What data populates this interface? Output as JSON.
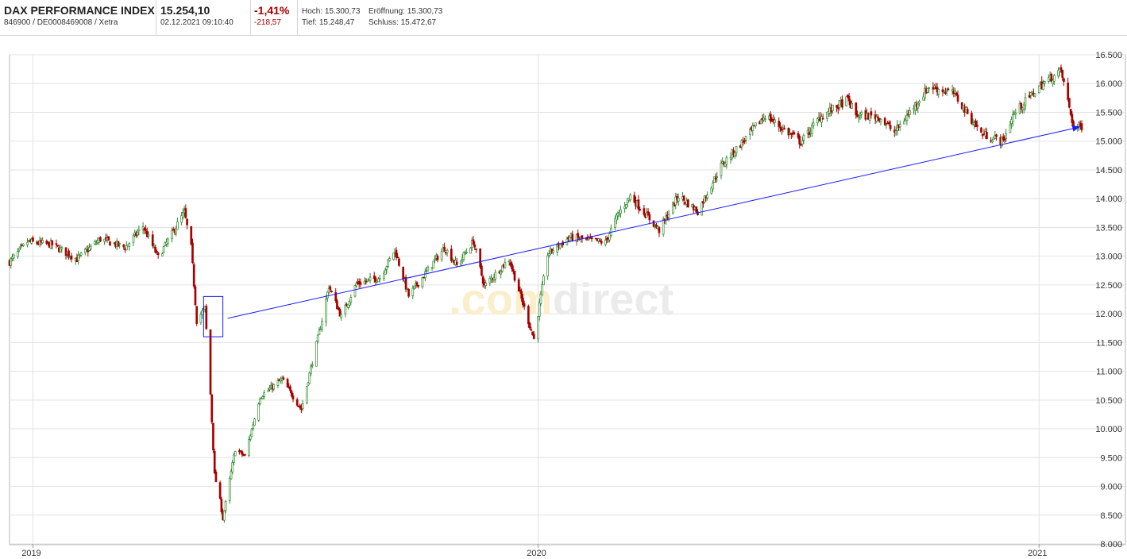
{
  "header": {
    "name": "DAX PERFORMANCE INDEX",
    "ids": "846900 / DE0008469008 / Xetra",
    "price": "15.254,10",
    "datetime": "02.12.2021 09:10:40",
    "change_pct": "-1,41%",
    "change_abs": "-218,57",
    "high_label": "Hoch:",
    "high": "15.300,73",
    "open_label": "Eröffnung:",
    "open": "15.300,73",
    "low_label": "Tief:",
    "low": "15.248,47",
    "close_label": "Schluss:",
    "close": "15.472,67"
  },
  "watermark": {
    "prefix": ".com",
    "suffix": "direct"
  },
  "colors": {
    "up": "#2e8b2e",
    "down": "#a80000",
    "trendline": "#1a1aff",
    "grid": "#e2e2e2"
  },
  "chart_data": {
    "type": "candlestick",
    "grid": true,
    "ylim": [
      8000,
      16500
    ],
    "y_ticks": [
      "16.500",
      "16.000",
      "15.500",
      "15.000",
      "14.500",
      "14.000",
      "13.500",
      "13.000",
      "12.500",
      "12.000",
      "11.500",
      "11.000",
      "10.500",
      "10.000",
      "9.500",
      "9.000",
      "8.500",
      "8.000"
    ],
    "y_tick_values": [
      16500,
      16000,
      15500,
      15000,
      14500,
      14000,
      13500,
      13000,
      12500,
      12000,
      11500,
      11000,
      10500,
      10000,
      9500,
      9000,
      8500,
      8000
    ],
    "x_ticks": [
      "2019",
      "2020",
      "2021"
    ],
    "x_tick_values": [
      "2019-11-01",
      "2020-11-02",
      "2021-11-01"
    ],
    "x_range": [
      "2019-10-15",
      "2021-12-02"
    ],
    "anchors": [
      [
        "2019-10-15",
        12900
      ],
      [
        "2019-10-28",
        13250
      ],
      [
        "2019-11-15",
        13200
      ],
      [
        "2019-12-03",
        12950
      ],
      [
        "2019-12-20",
        13300
      ],
      [
        "2020-01-07",
        13150
      ],
      [
        "2020-01-20",
        13520
      ],
      [
        "2020-01-31",
        12980
      ],
      [
        "2020-02-19",
        13760
      ],
      [
        "2020-02-24",
        13150
      ],
      [
        "2020-02-28",
        11880
      ],
      [
        "2020-03-05",
        12100
      ],
      [
        "2020-03-09",
        10600
      ],
      [
        "2020-03-12",
        9200
      ],
      [
        "2020-03-16",
        8750
      ],
      [
        "2020-03-18",
        8440
      ],
      [
        "2020-03-27",
        9650
      ],
      [
        "2020-04-03",
        9520
      ],
      [
        "2020-04-14",
        10560
      ],
      [
        "2020-04-30",
        10860
      ],
      [
        "2020-05-14",
        10340
      ],
      [
        "2020-05-28",
        11780
      ],
      [
        "2020-06-03",
        12480
      ],
      [
        "2020-06-12",
        11950
      ],
      [
        "2020-06-23",
        12520
      ],
      [
        "2020-07-10",
        12630
      ],
      [
        "2020-07-21",
        13110
      ],
      [
        "2020-07-31",
        12310
      ],
      [
        "2020-08-26",
        13150
      ],
      [
        "2020-09-04",
        12840
      ],
      [
        "2020-09-16",
        13260
      ],
      [
        "2020-09-24",
        12480
      ],
      [
        "2020-10-12",
        12950
      ],
      [
        "2020-10-30",
        11560
      ],
      [
        "2020-11-09",
        13040
      ],
      [
        "2020-11-25",
        13330
      ],
      [
        "2020-12-07",
        13280
      ],
      [
        "2020-12-21",
        13240
      ],
      [
        "2020-12-30",
        13720
      ],
      [
        "2021-01-08",
        14050
      ],
      [
        "2021-01-29",
        13450
      ],
      [
        "2021-02-12",
        14050
      ],
      [
        "2021-02-26",
        13780
      ],
      [
        "2021-03-15",
        14570
      ],
      [
        "2021-03-31",
        15000
      ],
      [
        "2021-04-16",
        15450
      ],
      [
        "2021-05-12",
        14980
      ],
      [
        "2021-05-26",
        15420
      ],
      [
        "2021-06-15",
        15720
      ],
      [
        "2021-06-21",
        15450
      ],
      [
        "2021-07-08",
        15420
      ],
      [
        "2021-07-19",
        15150
      ],
      [
        "2021-08-13",
        15950
      ],
      [
        "2021-08-31",
        15830
      ],
      [
        "2021-09-20",
        15130
      ],
      [
        "2021-10-06",
        15000
      ],
      [
        "2021-10-13",
        15450
      ],
      [
        "2021-11-01",
        15950
      ],
      [
        "2021-11-17",
        16220
      ],
      [
        "2021-11-26",
        15260
      ],
      [
        "2021-12-02",
        15254
      ]
    ],
    "overlays": {
      "trendline": {
        "from": [
          "2020-03-18",
          11920
        ],
        "to": [
          "2021-12-01",
          15250
        ]
      },
      "marker_box": {
        "x": [
          "2020-03-04",
          "2020-03-18"
        ],
        "y": [
          11600,
          12300
        ]
      }
    }
  }
}
